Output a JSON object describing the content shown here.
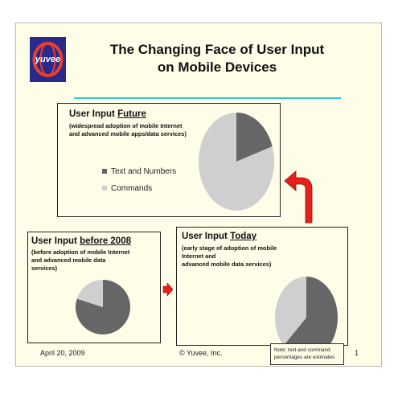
{
  "logo": {
    "text": "yuvee"
  },
  "title": {
    "line1": "The Changing Face of User Input",
    "line2": "on Mobile Devices"
  },
  "colors": {
    "text_and_numbers": "#666666",
    "commands": "#cfcfcf",
    "arrow": "#e8201c",
    "rule": "#38c8d8"
  },
  "chart_data": [
    {
      "type": "pie",
      "heading_prefix": "User Input ",
      "heading_emph": "Future",
      "subtitle": [
        "(widespread adoption of mobile Internet",
        " and advanced mobile apps/data services)"
      ],
      "legend": [
        "Text and Numbers",
        "Commands"
      ],
      "categories": [
        "Text and Numbers",
        "Commands"
      ],
      "values": [
        20,
        80
      ]
    },
    {
      "type": "pie",
      "heading_prefix": "User Input ",
      "heading_emph": "before 2008",
      "subtitle": [
        "(before adoption of mobile Internet",
        "and advanced mobile data",
        "services)"
      ],
      "categories": [
        "Text and Numbers",
        "Commands"
      ],
      "values": [
        80,
        20
      ]
    },
    {
      "type": "pie",
      "heading_prefix": "User Input ",
      "heading_emph": "Today",
      "subtitle": [
        "(early stage of adoption of mobile",
        "Internet and",
        "advanced mobile data services)"
      ],
      "categories": [
        "Text and Numbers",
        "Commands"
      ],
      "values": [
        63,
        37
      ]
    }
  ],
  "footer": {
    "date": "April 20, 2009",
    "copyright": "© Yuvee, Inc.",
    "note": [
      "Note:  text and command",
      "percentages are estimates"
    ],
    "page": "1"
  }
}
